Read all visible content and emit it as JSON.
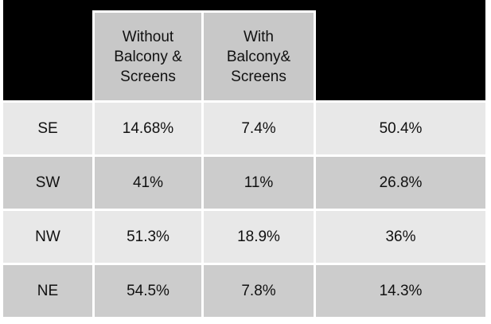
{
  "header": {
    "columns": [
      [
        "Without",
        "Balcony &",
        "Screens"
      ],
      [
        "With",
        "Balcony&",
        "Screens"
      ]
    ]
  },
  "table": {
    "rows": [
      [
        "SE",
        "14.68%",
        "7.4%",
        "50.4%"
      ],
      [
        "SW",
        "41%",
        "11%",
        "26.8%"
      ],
      [
        "NW",
        "51.3%",
        "18.9%",
        "36%"
      ],
      [
        "NE",
        "54.5%",
        "7.8%",
        "14.3%"
      ]
    ]
  }
}
